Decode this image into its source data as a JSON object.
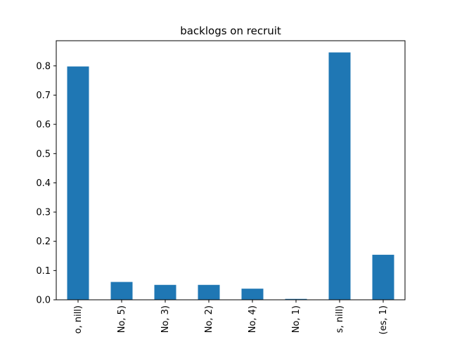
{
  "chart_data": {
    "type": "bar",
    "title": "backlogs on recruit",
    "xlabel": "",
    "ylabel": "",
    "categories": [
      "o, nill)",
      "No, 5)",
      "No, 3)",
      "No, 2)",
      "No, 4)",
      "No, 1)",
      "s, nill)",
      "(es, 1)"
    ],
    "values": [
      0.798,
      0.061,
      0.051,
      0.051,
      0.038,
      0.003,
      0.846,
      0.154
    ],
    "ylim": [
      0,
      0.886
    ],
    "yticks": [
      0.0,
      0.1,
      0.2,
      0.3,
      0.4,
      0.5,
      0.6,
      0.7,
      0.8
    ],
    "ytick_labels": [
      "0.0",
      "0.1",
      "0.2",
      "0.3",
      "0.4",
      "0.5",
      "0.6",
      "0.7",
      "0.8"
    ],
    "grid": false,
    "bar_color": "#1f77b4"
  }
}
